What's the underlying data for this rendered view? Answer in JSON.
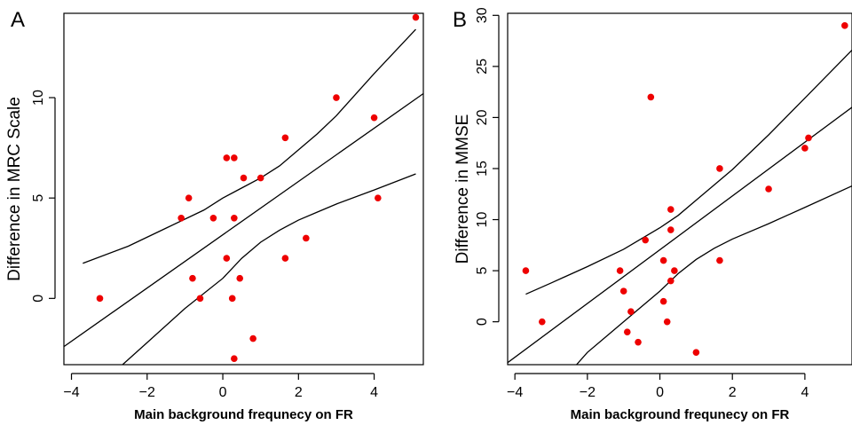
{
  "colors": {
    "point": "#ee0000",
    "line": "#000000"
  },
  "chart_data": [
    {
      "panel_label": "A",
      "type": "scatter",
      "xlabel": "Main background frequnecy on FR",
      "ylabel": "Difference in MRC Scale",
      "xlim": [
        -4.2,
        5.3
      ],
      "ylim": [
        -3.3,
        14.2
      ],
      "xticks": [
        -4,
        -2,
        0,
        2,
        4
      ],
      "xtick_labels": [
        "−4",
        "−2",
        "0",
        "2",
        "4"
      ],
      "yticks": [
        0,
        5,
        10
      ],
      "ytick_labels": [
        "0",
        "5",
        "10"
      ],
      "points": [
        {
          "x": -3.25,
          "y": 0
        },
        {
          "x": -1.1,
          "y": 4
        },
        {
          "x": -0.9,
          "y": 5
        },
        {
          "x": -0.8,
          "y": 1
        },
        {
          "x": -0.6,
          "y": 0
        },
        {
          "x": -0.25,
          "y": 4
        },
        {
          "x": 0.1,
          "y": 7
        },
        {
          "x": 0.1,
          "y": 2
        },
        {
          "x": 0.25,
          "y": 0
        },
        {
          "x": 0.3,
          "y": 7
        },
        {
          "x": 0.3,
          "y": 4
        },
        {
          "x": 0.3,
          "y": -3
        },
        {
          "x": 0.45,
          "y": 1
        },
        {
          "x": 0.55,
          "y": 6
        },
        {
          "x": 0.8,
          "y": -2
        },
        {
          "x": 1.0,
          "y": 6
        },
        {
          "x": 1.65,
          "y": 8
        },
        {
          "x": 1.65,
          "y": 2
        },
        {
          "x": 2.2,
          "y": 3
        },
        {
          "x": 3.0,
          "y": 10
        },
        {
          "x": 4.0,
          "y": 9
        },
        {
          "x": 4.1,
          "y": 5
        },
        {
          "x": 5.1,
          "y": 14
        }
      ],
      "fit_line": [
        {
          "x": -4.2,
          "y": -2.4
        },
        {
          "x": 5.3,
          "y": 10.2
        }
      ],
      "ci_upper": [
        {
          "x": -3.7,
          "y": 1.75
        },
        {
          "x": -2.5,
          "y": 2.6
        },
        {
          "x": -1.5,
          "y": 3.5
        },
        {
          "x": -0.5,
          "y": 4.4
        },
        {
          "x": 0.0,
          "y": 5.0
        },
        {
          "x": 0.5,
          "y": 5.5
        },
        {
          "x": 1.0,
          "y": 6.0
        },
        {
          "x": 1.5,
          "y": 6.6
        },
        {
          "x": 2.0,
          "y": 7.4
        },
        {
          "x": 2.5,
          "y": 8.2
        },
        {
          "x": 3.0,
          "y": 9.1
        },
        {
          "x": 4.0,
          "y": 11.2
        },
        {
          "x": 5.1,
          "y": 13.4
        }
      ],
      "ci_lower": [
        {
          "x": -2.65,
          "y": -3.3
        },
        {
          "x": -2.0,
          "y": -2.2
        },
        {
          "x": -1.0,
          "y": -0.5
        },
        {
          "x": 0.0,
          "y": 1.0
        },
        {
          "x": 0.5,
          "y": 2.0
        },
        {
          "x": 1.0,
          "y": 2.8
        },
        {
          "x": 1.5,
          "y": 3.4
        },
        {
          "x": 2.0,
          "y": 3.9
        },
        {
          "x": 2.5,
          "y": 4.3
        },
        {
          "x": 3.0,
          "y": 4.7
        },
        {
          "x": 4.0,
          "y": 5.4
        },
        {
          "x": 5.1,
          "y": 6.2
        }
      ]
    },
    {
      "panel_label": "B",
      "type": "scatter",
      "xlabel": "Main background frequnecy on FR",
      "ylabel": "Difference in MMSE",
      "xlim": [
        -4.2,
        5.3
      ],
      "ylim": [
        -4.2,
        30.2
      ],
      "xticks": [
        -4,
        -2,
        0,
        2,
        4
      ],
      "xtick_labels": [
        "−4",
        "−2",
        "0",
        "2",
        "4"
      ],
      "yticks": [
        0,
        5,
        10,
        15,
        20,
        25,
        30
      ],
      "ytick_labels": [
        "0",
        "5",
        "10",
        "15",
        "20",
        "25",
        "30"
      ],
      "points": [
        {
          "x": -3.7,
          "y": 5
        },
        {
          "x": -3.25,
          "y": 0
        },
        {
          "x": -1.1,
          "y": 5
        },
        {
          "x": -1.0,
          "y": 3
        },
        {
          "x": -0.9,
          "y": -1
        },
        {
          "x": -0.8,
          "y": 1
        },
        {
          "x": -0.6,
          "y": -2
        },
        {
          "x": -0.4,
          "y": 8
        },
        {
          "x": -0.25,
          "y": 22
        },
        {
          "x": 0.1,
          "y": 6
        },
        {
          "x": 0.1,
          "y": 2
        },
        {
          "x": 0.2,
          "y": 0
        },
        {
          "x": 0.3,
          "y": 11
        },
        {
          "x": 0.3,
          "y": 9
        },
        {
          "x": 0.3,
          "y": 4
        },
        {
          "x": 0.4,
          "y": 5
        },
        {
          "x": 1.0,
          "y": -3
        },
        {
          "x": 1.65,
          "y": 15
        },
        {
          "x": 1.65,
          "y": 6
        },
        {
          "x": 3.0,
          "y": 13
        },
        {
          "x": 4.0,
          "y": 17
        },
        {
          "x": 4.1,
          "y": 18
        },
        {
          "x": 5.1,
          "y": 29
        }
      ],
      "fit_line": [
        {
          "x": -4.2,
          "y": -4.0
        },
        {
          "x": 5.3,
          "y": 21.0
        }
      ],
      "ci_upper": [
        {
          "x": -3.7,
          "y": 2.7
        },
        {
          "x": -3.0,
          "y": 3.8
        },
        {
          "x": -2.0,
          "y": 5.4
        },
        {
          "x": -1.0,
          "y": 7.1
        },
        {
          "x": 0.0,
          "y": 9.2
        },
        {
          "x": 0.5,
          "y": 10.4
        },
        {
          "x": 1.0,
          "y": 11.9
        },
        {
          "x": 2.0,
          "y": 14.9
        },
        {
          "x": 3.0,
          "y": 18.3
        },
        {
          "x": 4.0,
          "y": 21.9
        },
        {
          "x": 5.3,
          "y": 26.6
        }
      ],
      "ci_lower": [
        {
          "x": -2.3,
          "y": -4.2
        },
        {
          "x": -2.0,
          "y": -3.0
        },
        {
          "x": -1.0,
          "y": 0.0
        },
        {
          "x": 0.0,
          "y": 3.0
        },
        {
          "x": 0.5,
          "y": 4.7
        },
        {
          "x": 1.0,
          "y": 6.1
        },
        {
          "x": 1.5,
          "y": 7.2
        },
        {
          "x": 2.0,
          "y": 8.1
        },
        {
          "x": 3.0,
          "y": 9.6
        },
        {
          "x": 4.0,
          "y": 11.2
        },
        {
          "x": 5.3,
          "y": 13.3
        }
      ]
    }
  ]
}
